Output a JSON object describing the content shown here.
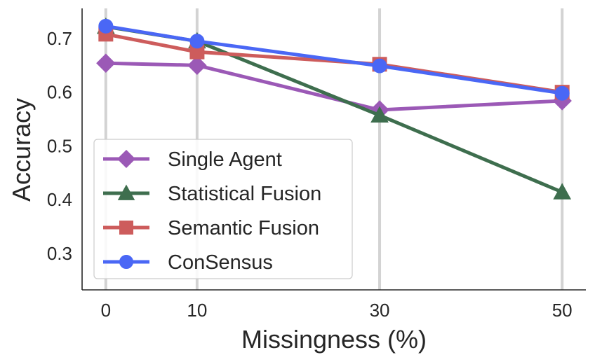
{
  "chart_data": {
    "type": "line",
    "title": "",
    "xlabel": "Missingness (%)",
    "ylabel": "Accuracy",
    "x": [
      0,
      10,
      30,
      50
    ],
    "x_ticks": [
      "0",
      "10",
      "30",
      "50"
    ],
    "y_ticks": [
      "0.3",
      "0.4",
      "0.5",
      "0.6",
      "0.7"
    ],
    "xlim": [
      -2.6,
      52.6
    ],
    "ylim": [
      0.232,
      0.756
    ],
    "grid": "vertical",
    "legend_position": "lower-left",
    "series": [
      {
        "name": "Single Agent",
        "color": "#9b59b6",
        "marker": "diamond",
        "values": [
          0.654,
          0.65,
          0.567,
          0.584
        ]
      },
      {
        "name": "Statistical Fusion",
        "color": "#3e6e4e",
        "marker": "triangle",
        "values": [
          0.722,
          0.695,
          0.557,
          0.414
        ]
      },
      {
        "name": "Semantic Fusion",
        "color": "#cd5c5c",
        "marker": "square",
        "values": [
          0.708,
          0.675,
          0.652,
          0.6
        ]
      },
      {
        "name": "ConSensus",
        "color": "#4a67f5",
        "marker": "circle",
        "values": [
          0.723,
          0.695,
          0.649,
          0.598
        ]
      }
    ]
  }
}
